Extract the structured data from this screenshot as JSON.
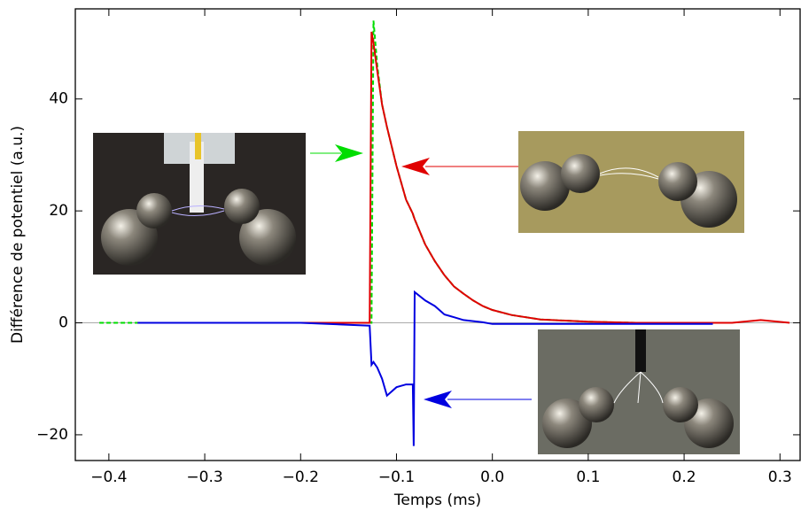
{
  "chart_data": {
    "type": "line",
    "x_label": "Temps (ms)",
    "y_label": "Différence de potentiel (a.u.)",
    "x": [
      -0.41,
      -0.37,
      -0.3,
      -0.2,
      -0.128,
      -0.126,
      -0.124,
      -0.12,
      -0.115,
      -0.11,
      -0.1,
      -0.09,
      -0.083,
      -0.082,
      -0.081,
      -0.07,
      -0.06,
      -0.05,
      -0.04,
      -0.03,
      -0.02,
      -0.01,
      0.0,
      0.02,
      0.05,
      0.1,
      0.15,
      0.2,
      0.23,
      0.25,
      0.28,
      0.31
    ],
    "series": [
      {
        "color": "#00dd00",
        "dashed": true,
        "values": [
          0,
          0,
          0,
          0,
          0,
          0,
          54,
          46,
          39,
          35,
          28,
          22,
          19.5,
          19,
          18.5,
          14,
          11,
          8.5,
          6.5,
          5.2,
          4,
          3,
          2.3,
          1.4,
          0.6,
          0.2,
          0,
          0,
          null,
          null,
          null,
          null
        ]
      },
      {
        "color": "#e00000",
        "dashed": false,
        "values": [
          null,
          0,
          0,
          0,
          0,
          52,
          50,
          45,
          39,
          35,
          28,
          22,
          19.5,
          19,
          18.5,
          14,
          11,
          8.5,
          6.5,
          5.2,
          4,
          3,
          2.3,
          1.4,
          0.6,
          0.2,
          0,
          0,
          0,
          0,
          0.5,
          0
        ]
      },
      {
        "color": "#0000e0",
        "dashed": false,
        "values": [
          null,
          0,
          0,
          0,
          -0.5,
          -7.5,
          -7,
          -8,
          -10,
          -13,
          -11.5,
          -11,
          -11,
          -22,
          5.5,
          4,
          3,
          1.5,
          1,
          0.5,
          0.3,
          0.1,
          -0.2,
          -0.2,
          -0.2,
          -0.2,
          -0.2,
          -0.2,
          -0.2,
          null,
          null,
          null
        ]
      }
    ],
    "xlim": [
      -0.435,
      0.321
    ],
    "ylim": [
      -24.6,
      56.1
    ],
    "xticks": [
      {
        "value": -0.4,
        "label": "−0.4"
      },
      {
        "value": -0.3,
        "label": "−0.3"
      },
      {
        "value": -0.2,
        "label": "−0.2"
      },
      {
        "value": -0.1,
        "label": "−0.1"
      },
      {
        "value": 0,
        "label": "0.0"
      },
      0.1,
      0.2,
      0.3
    ],
    "yticks": [
      {
        "value": -20,
        "label": "−20"
      },
      0,
      20,
      40
    ],
    "zero_line": true
  }
}
